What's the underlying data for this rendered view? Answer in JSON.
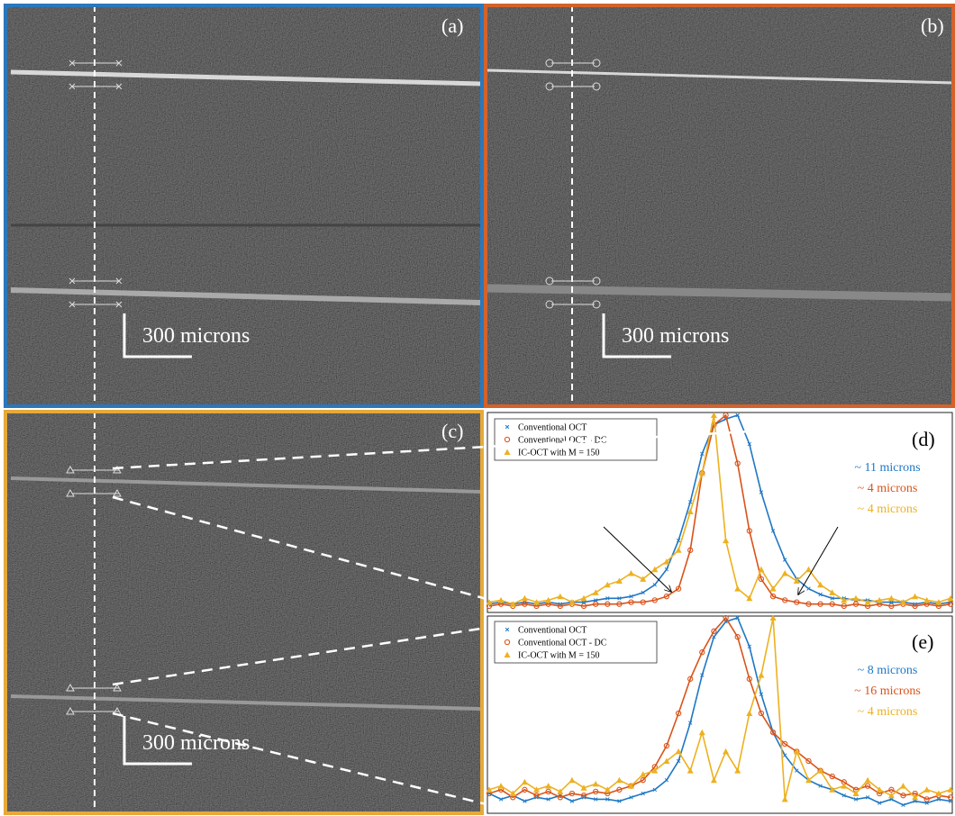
{
  "panels": [
    {
      "label": "(a)",
      "scale_bar": "300 microns"
    },
    {
      "label": "(b)",
      "scale_bar": "300 microns"
    },
    {
      "label": "(c)",
      "scale_bar": "300 microns"
    }
  ],
  "chart_data": [
    {
      "type": "line",
      "label": "(d)",
      "xlim": [
        0,
        39
      ],
      "ylim": [
        0,
        1
      ],
      "series": [
        {
          "name": "Conventional OCT",
          "color": "#1f77c4",
          "marker": "x",
          "fwhm_label": "~ 11 microns",
          "values": [
            0.02,
            0.03,
            0.02,
            0.03,
            0.02,
            0.03,
            0.02,
            0.03,
            0.03,
            0.04,
            0.05,
            0.05,
            0.06,
            0.08,
            0.12,
            0.2,
            0.35,
            0.55,
            0.8,
            0.95,
            0.98,
            1.0,
            0.85,
            0.6,
            0.4,
            0.25,
            0.15,
            0.1,
            0.07,
            0.05,
            0.05,
            0.04,
            0.04,
            0.03,
            0.03,
            0.03,
            0.02,
            0.03,
            0.02,
            0.03
          ]
        },
        {
          "name": "Conventional OCT - DC",
          "color": "#d95319",
          "marker": "circle",
          "fwhm_label": "~ 4 microns",
          "values": [
            0.01,
            0.02,
            0.01,
            0.02,
            0.01,
            0.02,
            0.01,
            0.02,
            0.01,
            0.02,
            0.02,
            0.02,
            0.03,
            0.03,
            0.04,
            0.06,
            0.1,
            0.3,
            0.7,
            0.95,
            1.0,
            0.75,
            0.4,
            0.15,
            0.06,
            0.04,
            0.03,
            0.02,
            0.02,
            0.02,
            0.01,
            0.02,
            0.01,
            0.02,
            0.01,
            0.02,
            0.01,
            0.02,
            0.01,
            0.02
          ]
        },
        {
          "name": "IC-OCT with M = 150",
          "color": "#edb120",
          "marker": "triangle",
          "fwhm_label": "~ 4 microns",
          "values": [
            0.03,
            0.04,
            0.02,
            0.05,
            0.03,
            0.04,
            0.06,
            0.03,
            0.05,
            0.08,
            0.12,
            0.14,
            0.18,
            0.15,
            0.2,
            0.24,
            0.3,
            0.5,
            0.7,
            1.0,
            0.35,
            0.1,
            0.05,
            0.2,
            0.1,
            0.18,
            0.14,
            0.2,
            0.12,
            0.08,
            0.04,
            0.05,
            0.03,
            0.04,
            0.05,
            0.03,
            0.06,
            0.04,
            0.03,
            0.05
          ]
        }
      ]
    },
    {
      "type": "line",
      "label": "(e)",
      "xlim": [
        0,
        39
      ],
      "ylim": [
        0,
        1
      ],
      "series": [
        {
          "name": "Conventional OCT",
          "color": "#1f77c4",
          "marker": "x",
          "fwhm_label": "~ 8 microns",
          "values": [
            0.08,
            0.05,
            0.07,
            0.04,
            0.06,
            0.05,
            0.07,
            0.04,
            0.06,
            0.05,
            0.05,
            0.04,
            0.06,
            0.08,
            0.1,
            0.15,
            0.25,
            0.45,
            0.7,
            0.9,
            0.98,
            1.0,
            0.85,
            0.6,
            0.4,
            0.28,
            0.2,
            0.15,
            0.12,
            0.1,
            0.07,
            0.05,
            0.06,
            0.03,
            0.05,
            0.02,
            0.04,
            0.03,
            0.05,
            0.04
          ]
        },
        {
          "name": "Conventional OCT - DC",
          "color": "#d95319",
          "marker": "circle",
          "fwhm_label": "~ 16 microns",
          "values": [
            0.08,
            0.1,
            0.06,
            0.1,
            0.07,
            0.09,
            0.06,
            0.08,
            0.07,
            0.09,
            0.08,
            0.1,
            0.12,
            0.15,
            0.22,
            0.33,
            0.5,
            0.68,
            0.82,
            0.93,
            1.0,
            0.9,
            0.68,
            0.5,
            0.4,
            0.34,
            0.3,
            0.25,
            0.2,
            0.17,
            0.14,
            0.1,
            0.12,
            0.08,
            0.1,
            0.07,
            0.08,
            0.05,
            0.07,
            0.06
          ]
        },
        {
          "name": "IC-OCT with M = 150",
          "color": "#edb120",
          "marker": "triangle",
          "fwhm_label": "~ 4 microns",
          "values": [
            0.1,
            0.12,
            0.08,
            0.14,
            0.1,
            0.12,
            0.09,
            0.15,
            0.11,
            0.13,
            0.1,
            0.15,
            0.12,
            0.18,
            0.2,
            0.25,
            0.3,
            0.2,
            0.4,
            0.15,
            0.3,
            0.2,
            0.5,
            0.7,
            1.0,
            0.05,
            0.3,
            0.15,
            0.2,
            0.1,
            0.12,
            0.08,
            0.15,
            0.1,
            0.07,
            0.12,
            0.06,
            0.1,
            0.08,
            0.1
          ]
        }
      ]
    }
  ]
}
